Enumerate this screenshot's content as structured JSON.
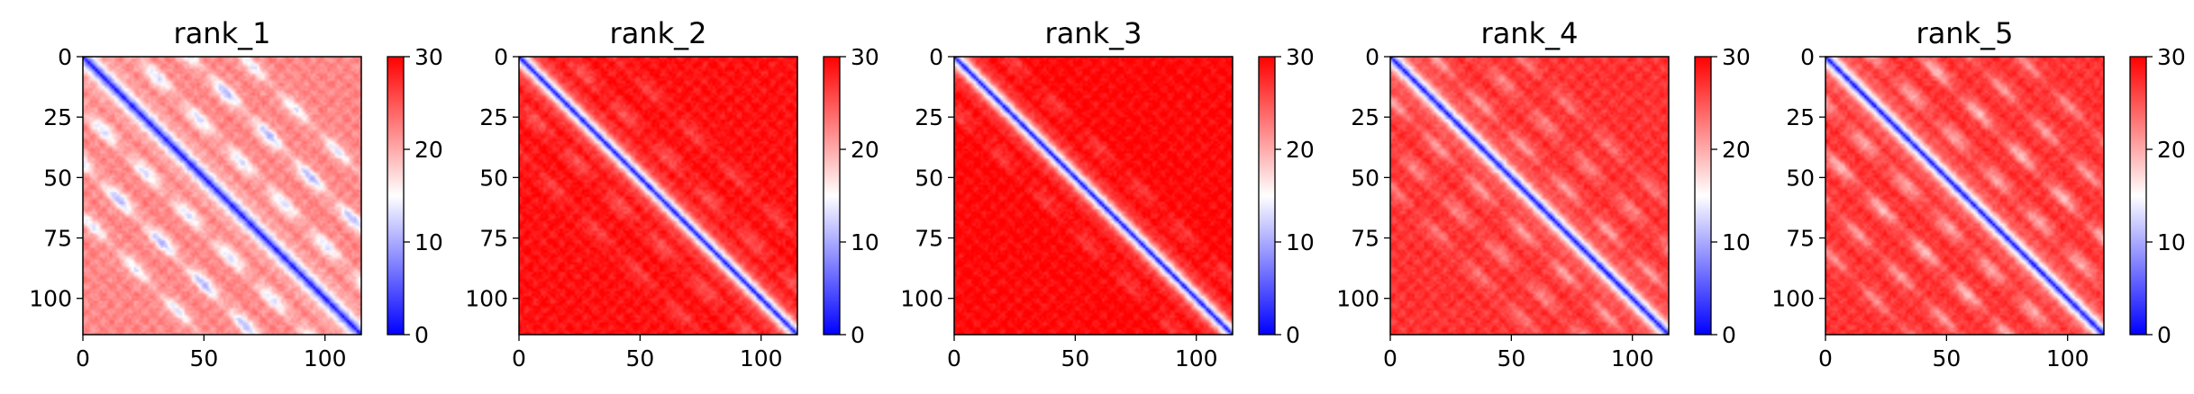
{
  "chart_data": [
    {
      "type": "heatmap",
      "title": "rank_1",
      "size": 115,
      "xticks": [
        0,
        50,
        100
      ],
      "yticks": [
        0,
        25,
        50,
        75,
        100
      ],
      "colorbar": {
        "min": 0,
        "max": 30,
        "ticks": [
          0,
          10,
          20,
          30
        ],
        "colormap": "bwr"
      },
      "pattern": {
        "diagonal": 3.5,
        "background": 22,
        "side_bands": [
          {
            "offset": 22,
            "depth": 9
          },
          {
            "offset": 44,
            "depth": 11
          },
          {
            "offset": 66,
            "depth": 8
          }
        ]
      }
    },
    {
      "type": "heatmap",
      "title": "rank_2",
      "size": 115,
      "xticks": [
        0,
        50,
        100
      ],
      "yticks": [
        0,
        25,
        50,
        75,
        100
      ],
      "colorbar": {
        "min": 0,
        "max": 30,
        "ticks": [
          0,
          10,
          20,
          30
        ],
        "colormap": "bwr"
      },
      "pattern": {
        "diagonal": 3.5,
        "background": 29,
        "side_bands": [
          {
            "offset": 20,
            "depth": 4
          },
          {
            "offset": 40,
            "depth": 3
          }
        ]
      }
    },
    {
      "type": "heatmap",
      "title": "rank_3",
      "size": 115,
      "xticks": [
        0,
        50,
        100
      ],
      "yticks": [
        0,
        25,
        50,
        75,
        100
      ],
      "colorbar": {
        "min": 0,
        "max": 30,
        "ticks": [
          0,
          10,
          20,
          30
        ],
        "colormap": "bwr"
      },
      "pattern": {
        "diagonal": 3.5,
        "background": 29.5,
        "side_bands": [
          {
            "offset": 22,
            "depth": 3
          }
        ]
      }
    },
    {
      "type": "heatmap",
      "title": "rank_4",
      "size": 115,
      "xticks": [
        0,
        50,
        100
      ],
      "yticks": [
        0,
        25,
        50,
        75,
        100
      ],
      "colorbar": {
        "min": 0,
        "max": 30,
        "ticks": [
          0,
          10,
          20,
          30
        ],
        "colormap": "bwr"
      },
      "pattern": {
        "diagonal": 3.5,
        "background": 27,
        "side_bands": [
          {
            "offset": 18,
            "depth": 6
          },
          {
            "offset": 36,
            "depth": 5
          },
          {
            "offset": 54,
            "depth": 4
          }
        ]
      }
    },
    {
      "type": "heatmap",
      "title": "rank_5",
      "size": 115,
      "xticks": [
        0,
        50,
        100
      ],
      "yticks": [
        0,
        25,
        50,
        75,
        100
      ],
      "colorbar": {
        "min": 0,
        "max": 30,
        "ticks": [
          0,
          10,
          20,
          30
        ],
        "colormap": "bwr"
      },
      "pattern": {
        "diagonal": 3.5,
        "background": 27,
        "side_bands": [
          {
            "offset": 20,
            "depth": 7
          },
          {
            "offset": 40,
            "depth": 8
          },
          {
            "offset": 60,
            "depth": 6
          },
          {
            "offset": 80,
            "depth": 5
          }
        ]
      }
    }
  ]
}
